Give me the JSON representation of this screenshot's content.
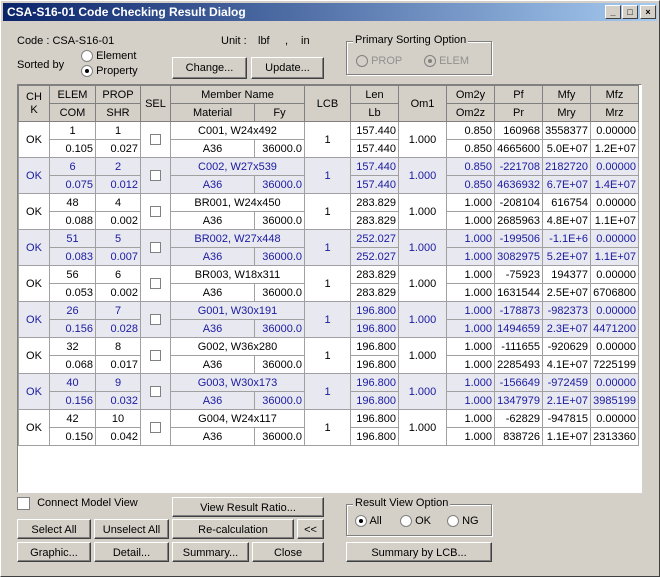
{
  "window": {
    "title": "CSA-S16-01 Code Checking Result Dialog",
    "minimize": "_",
    "maximize": "□",
    "close": "×"
  },
  "info": {
    "code_label": "Code : CSA-S16-01",
    "unit_label": "Unit :",
    "unit_force": "lbf",
    "unit_sep": ",",
    "unit_length": "in",
    "sorted_by_label": "Sorted by",
    "sort_element": "Element",
    "sort_property": "Property",
    "change_button": "Change...",
    "update_button": "Update..."
  },
  "primary_sorting": {
    "title": "Primary Sorting Option",
    "prop": "PROP",
    "elem": "ELEM"
  },
  "table": {
    "headers_top": [
      "CH\nK",
      "ELEM",
      "PROP",
      "SEL",
      "Member Name",
      "LCB",
      "Len",
      "Om1",
      "Om2y",
      "Pf",
      "Mfy",
      "Mfz"
    ],
    "headers_bottom": [
      "COM",
      "SHR",
      "Material",
      "Fy",
      "Lb",
      "Om2z",
      "Pr",
      "Mry",
      "Mrz"
    ],
    "rows": [
      {
        "chk": "OK",
        "elem": "1",
        "com": "0.105",
        "prop": "1",
        "shr": "0.027",
        "name": "C001, W24x492",
        "material": "A36",
        "fy": "36000.0",
        "lcb": "1",
        "len": "157.440",
        "lb": "157.440",
        "om1": "1.000",
        "om2y": "0.850",
        "om2z": "0.850",
        "pf": "160968",
        "pr": "4665600",
        "mfy": "3558377",
        "mry": "5.0E+07",
        "mfz": "0.00000",
        "mrz": "1.2E+07"
      },
      {
        "chk": "OK",
        "elem": "6",
        "com": "0.075",
        "prop": "2",
        "shr": "0.012",
        "name": "C002, W27x539",
        "material": "A36",
        "fy": "36000.0",
        "lcb": "1",
        "len": "157.440",
        "lb": "157.440",
        "om1": "1.000",
        "om2y": "0.850",
        "om2z": "0.850",
        "pf": "-221708",
        "pr": "4636932",
        "mfy": "2182720",
        "mry": "6.7E+07",
        "mfz": "0.00000",
        "mrz": "1.4E+07"
      },
      {
        "chk": "OK",
        "elem": "48",
        "com": "0.088",
        "prop": "4",
        "shr": "0.002",
        "name": "BR001, W24x450",
        "material": "A36",
        "fy": "36000.0",
        "lcb": "1",
        "len": "283.829",
        "lb": "283.829",
        "om1": "1.000",
        "om2y": "1.000",
        "om2z": "1.000",
        "pf": "-208104",
        "pr": "2685963",
        "mfy": "616754",
        "mry": "4.8E+07",
        "mfz": "0.00000",
        "mrz": "1.1E+07"
      },
      {
        "chk": "OK",
        "elem": "51",
        "com": "0.083",
        "prop": "5",
        "shr": "0.007",
        "name": "BR002, W27x448",
        "material": "A36",
        "fy": "36000.0",
        "lcb": "1",
        "len": "252.027",
        "lb": "252.027",
        "om1": "1.000",
        "om2y": "1.000",
        "om2z": "1.000",
        "pf": "-199506",
        "pr": "3082975",
        "mfy": "-1.1E+6",
        "mry": "5.2E+07",
        "mfz": "0.00000",
        "mrz": "1.1E+07"
      },
      {
        "chk": "OK",
        "elem": "56",
        "com": "0.053",
        "prop": "6",
        "shr": "0.002",
        "name": "BR003, W18x311",
        "material": "A36",
        "fy": "36000.0",
        "lcb": "1",
        "len": "283.829",
        "lb": "283.829",
        "om1": "1.000",
        "om2y": "1.000",
        "om2z": "1.000",
        "pf": "-75923",
        "pr": "1631544",
        "mfy": "194377",
        "mry": "2.5E+07",
        "mfz": "0.00000",
        "mrz": "6706800"
      },
      {
        "chk": "OK",
        "elem": "26",
        "com": "0.156",
        "prop": "7",
        "shr": "0.028",
        "name": "G001, W30x191",
        "material": "A36",
        "fy": "36000.0",
        "lcb": "1",
        "len": "196.800",
        "lb": "196.800",
        "om1": "1.000",
        "om2y": "1.000",
        "om2z": "1.000",
        "pf": "-178873",
        "pr": "1494659",
        "mfy": "-982373",
        "mry": "2.3E+07",
        "mfz": "0.00000",
        "mrz": "4471200"
      },
      {
        "chk": "OK",
        "elem": "32",
        "com": "0.068",
        "prop": "8",
        "shr": "0.017",
        "name": "G002, W36x280",
        "material": "A36",
        "fy": "36000.0",
        "lcb": "1",
        "len": "196.800",
        "lb": "196.800",
        "om1": "1.000",
        "om2y": "1.000",
        "om2z": "1.000",
        "pf": "-111655",
        "pr": "2285493",
        "mfy": "-920629",
        "mry": "4.1E+07",
        "mfz": "0.00000",
        "mrz": "7225199"
      },
      {
        "chk": "OK",
        "elem": "40",
        "com": "0.156",
        "prop": "9",
        "shr": "0.032",
        "name": "G003, W30x173",
        "material": "A36",
        "fy": "36000.0",
        "lcb": "1",
        "len": "196.800",
        "lb": "196.800",
        "om1": "1.000",
        "om2y": "1.000",
        "om2z": "1.000",
        "pf": "-156649",
        "pr": "1347979",
        "mfy": "-972459",
        "mry": "2.1E+07",
        "mfz": "0.00000",
        "mrz": "3985199"
      },
      {
        "chk": "OK",
        "elem": "42",
        "com": "0.150",
        "prop": "10",
        "shr": "0.042",
        "name": "G004, W24x117",
        "material": "A36",
        "fy": "36000.0",
        "lcb": "1",
        "len": "196.800",
        "lb": "196.800",
        "om1": "1.000",
        "om2y": "1.000",
        "om2z": "1.000",
        "pf": "-62829",
        "pr": "838726",
        "mfy": "-947815",
        "mry": "1.1E+07",
        "mfz": "0.00000",
        "mrz": "2313360"
      }
    ]
  },
  "bottom": {
    "connect_model_view": "Connect Model View",
    "view_result_ratio": "View Result Ratio...",
    "select_all": "Select All",
    "unselect_all": "Unselect All",
    "recalculation": "Re-calculation",
    "collapse": "<<",
    "graphic": "Graphic...",
    "detail": "Detail...",
    "summary": "Summary...",
    "close": "Close",
    "result_view_option": "Result View Option",
    "opt_all": "All",
    "opt_ok": "OK",
    "opt_ng": "NG",
    "summary_by_lcb": "Summary by LCB..."
  },
  "colors": {
    "title_start": "#0a246a",
    "title_end": "#a6caf0",
    "alt_row_text": "#1a1aa0"
  }
}
